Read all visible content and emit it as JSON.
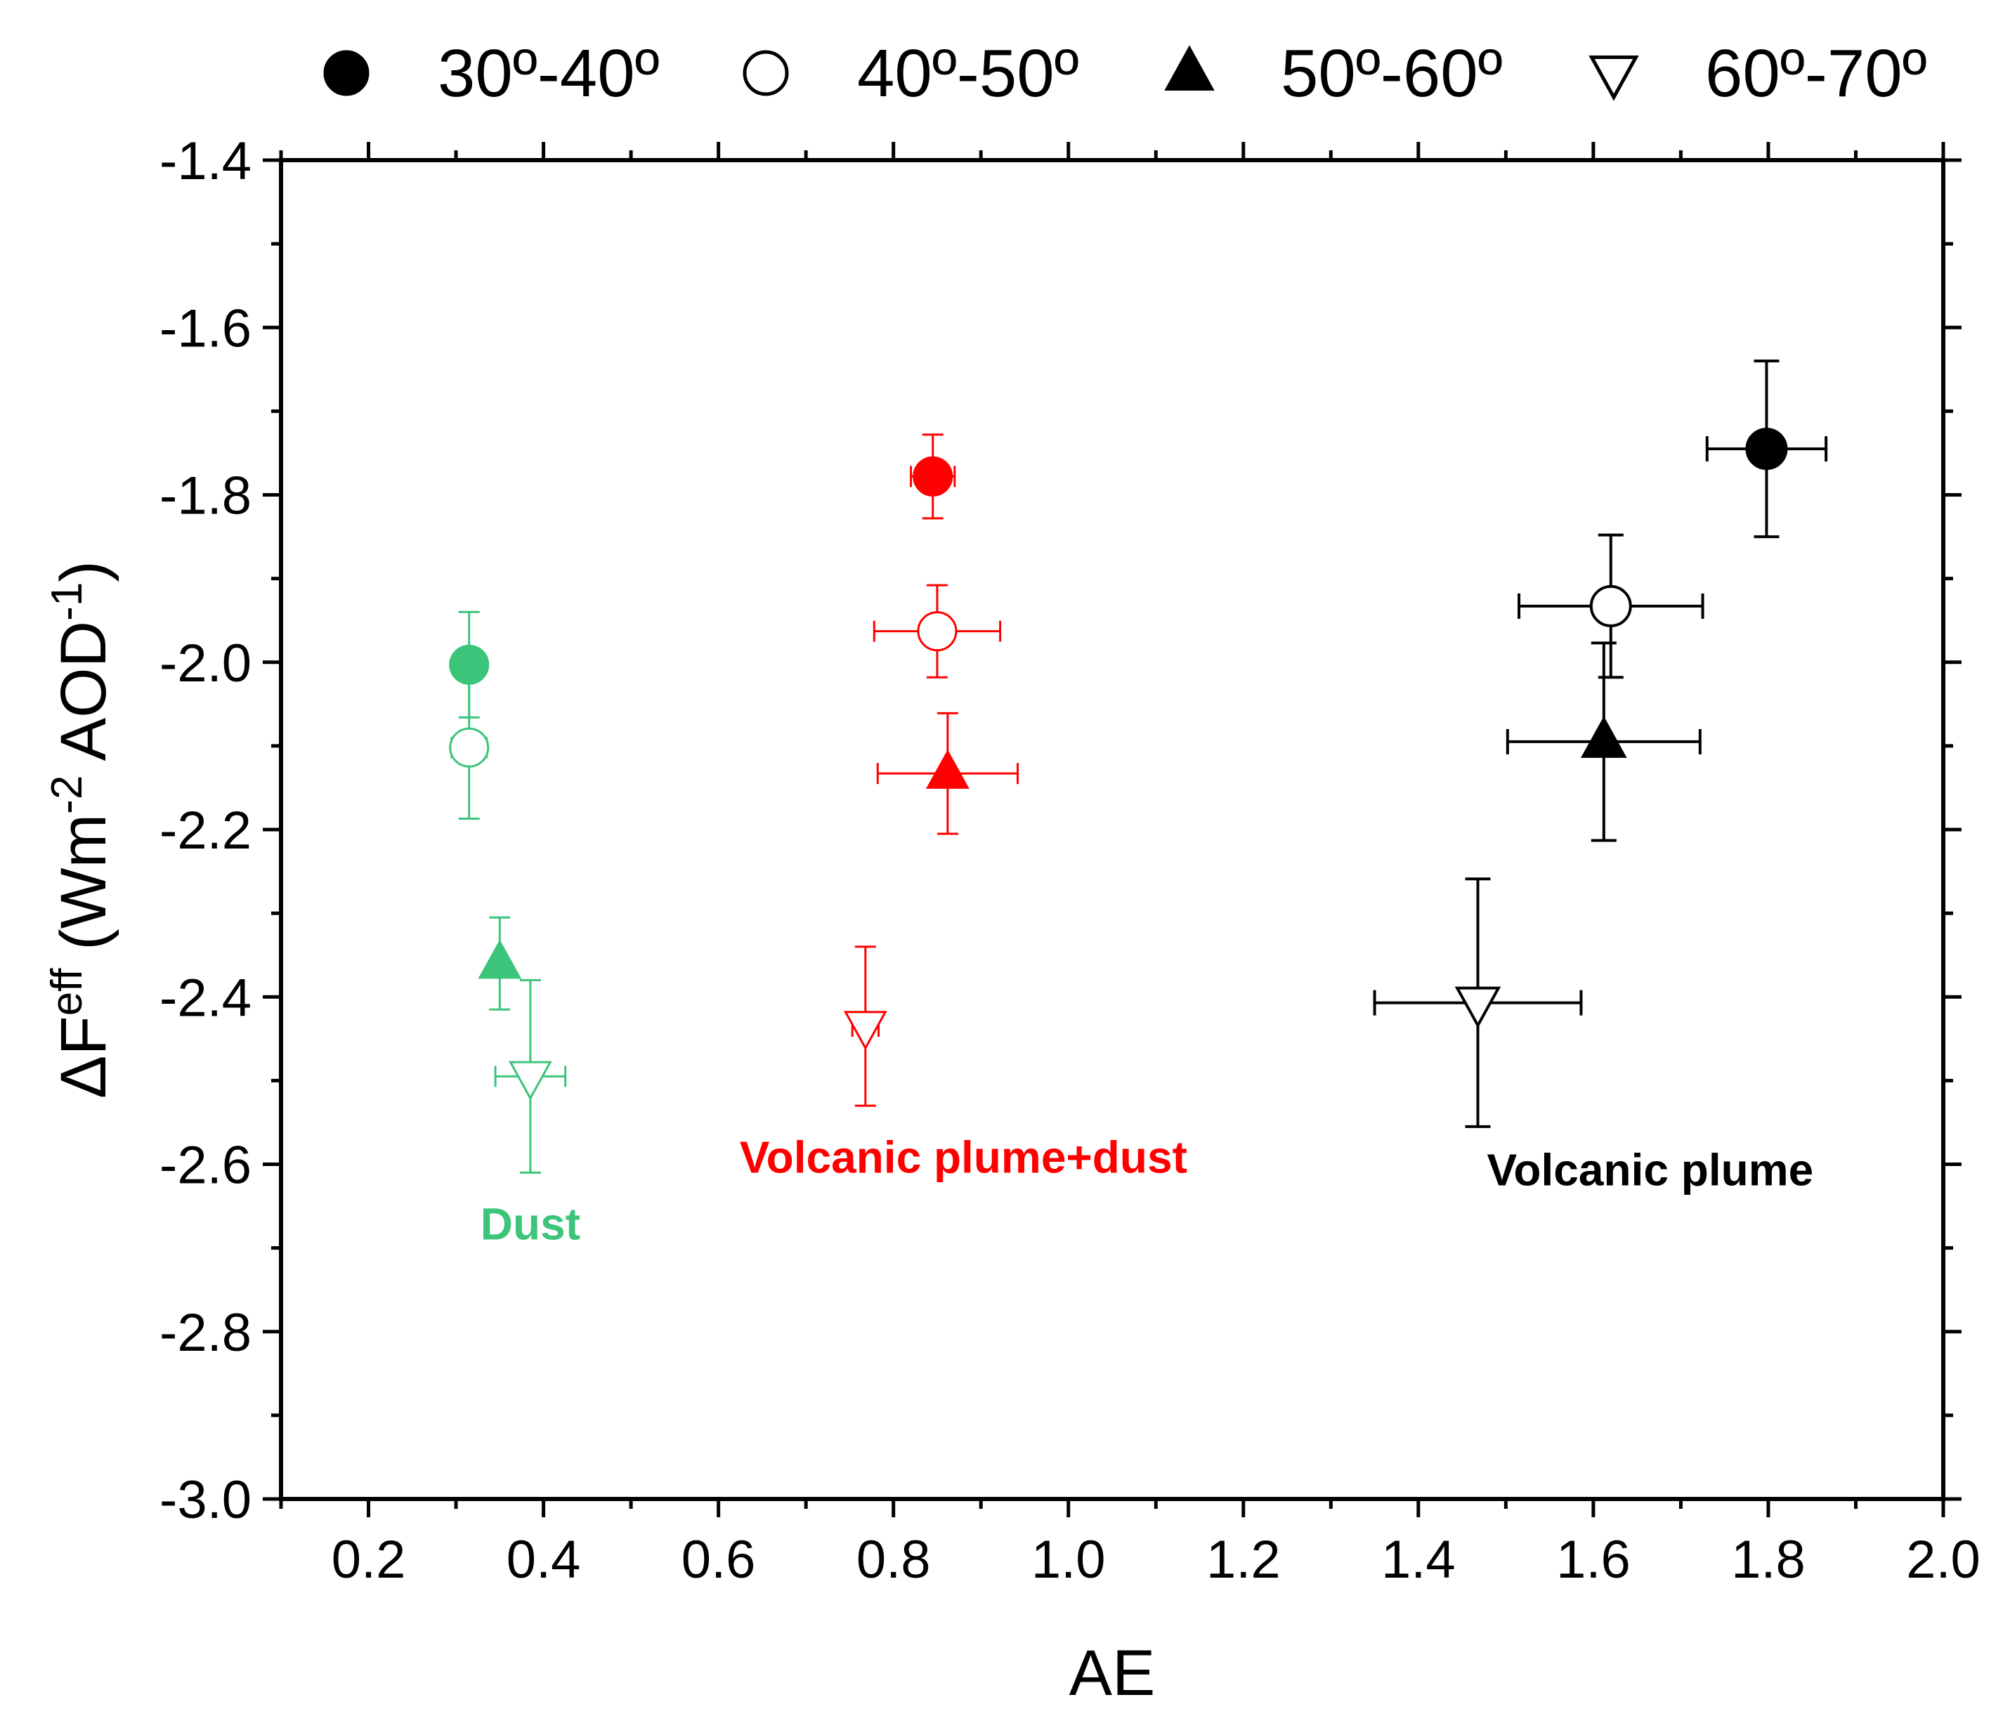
{
  "chart_data": {
    "type": "scatter",
    "title": "",
    "xlabel": "AE",
    "ylabel": {
      "prefix": "ΔF",
      "sup": "eff",
      "unit_open": " (Wm",
      "unit_exp1": "-2",
      "unit_mid": " AOD",
      "unit_exp2": "-1",
      "unit_close": ")"
    },
    "xlim": [
      0.1,
      2.0
    ],
    "ylim": [
      -3.0,
      -1.4
    ],
    "x_ticks": [
      0.2,
      0.4,
      0.6,
      0.8,
      1.0,
      1.2,
      1.4,
      1.6,
      1.8,
      2.0
    ],
    "x_tick_labels": [
      "0.2",
      "0.4",
      "0.6",
      "0.8",
      "1.0",
      "1.2",
      "1.4",
      "1.6",
      "1.8",
      "2.0"
    ],
    "y_ticks": [
      -3.0,
      -2.8,
      -2.6,
      -2.4,
      -2.2,
      -2.0,
      -1.8,
      -1.6,
      -1.4
    ],
    "y_tick_labels": [
      "-3.0",
      "-2.8",
      "-2.6",
      "-2.4",
      "-2.2",
      "-2.0",
      "-1.8",
      "-1.6",
      "-1.4"
    ],
    "x_minor_step": 0.1,
    "y_minor_step": 0.1,
    "grid": false,
    "legend_position": "top",
    "legend": [
      {
        "label": "30º-40º",
        "marker": "circle",
        "filled": true
      },
      {
        "label": "40º-50º",
        "marker": "circle",
        "filled": false
      },
      {
        "label": "50º-60º",
        "marker": "triangle-up",
        "filled": true
      },
      {
        "label": "60º-70º",
        "marker": "triangle-down",
        "filled": false
      }
    ],
    "groups": [
      {
        "name": "Dust",
        "color": "#3cc47a",
        "label_pos": {
          "x": 0.385,
          "y": -2.69
        },
        "points": [
          {
            "band": "30º-40º",
            "x": 0.315,
            "y": -2.003,
            "xerr": 0.0,
            "yerr": 0.063
          },
          {
            "band": "40º-50º",
            "x": 0.315,
            "y": -2.102,
            "xerr": 0.02,
            "yerr": 0.085
          },
          {
            "band": "50º-60º",
            "x": 0.35,
            "y": -2.36,
            "xerr": 0.0,
            "yerr": 0.055
          },
          {
            "band": "60º-70º",
            "x": 0.385,
            "y": -2.495,
            "xerr": 0.04,
            "yerr": 0.115
          }
        ]
      },
      {
        "name": "Volcanic plume+dust",
        "color": "#ff0000",
        "label_pos": {
          "x": 0.88,
          "y": -2.61
        },
        "points": [
          {
            "band": "30º-40º",
            "x": 0.845,
            "y": -1.778,
            "xerr": 0.025,
            "yerr": 0.05
          },
          {
            "band": "40º-50º",
            "x": 0.85,
            "y": -1.963,
            "xerr": 0.072,
            "yerr": 0.055
          },
          {
            "band": "50º-60º",
            "x": 0.862,
            "y": -2.133,
            "xerr": 0.08,
            "yerr": 0.072
          },
          {
            "band": "60º-70º",
            "x": 0.768,
            "y": -2.435,
            "xerr": 0.015,
            "yerr": 0.095
          }
        ]
      },
      {
        "name": "Volcanic plume",
        "color": "#000000",
        "label_pos": {
          "x": 1.665,
          "y": -2.625
        },
        "points": [
          {
            "band": "30º-40º",
            "x": 1.798,
            "y": -1.745,
            "xerr": 0.068,
            "yerr": 0.105
          },
          {
            "band": "40º-50º",
            "x": 1.62,
            "y": -1.933,
            "xerr": 0.105,
            "yerr": 0.085
          },
          {
            "band": "50º-60º",
            "x": 1.612,
            "y": -2.095,
            "xerr": 0.11,
            "yerr": 0.118
          },
          {
            "band": "60º-70º",
            "x": 1.468,
            "y": -2.407,
            "xerr": 0.118,
            "yerr": 0.148
          }
        ]
      }
    ]
  }
}
